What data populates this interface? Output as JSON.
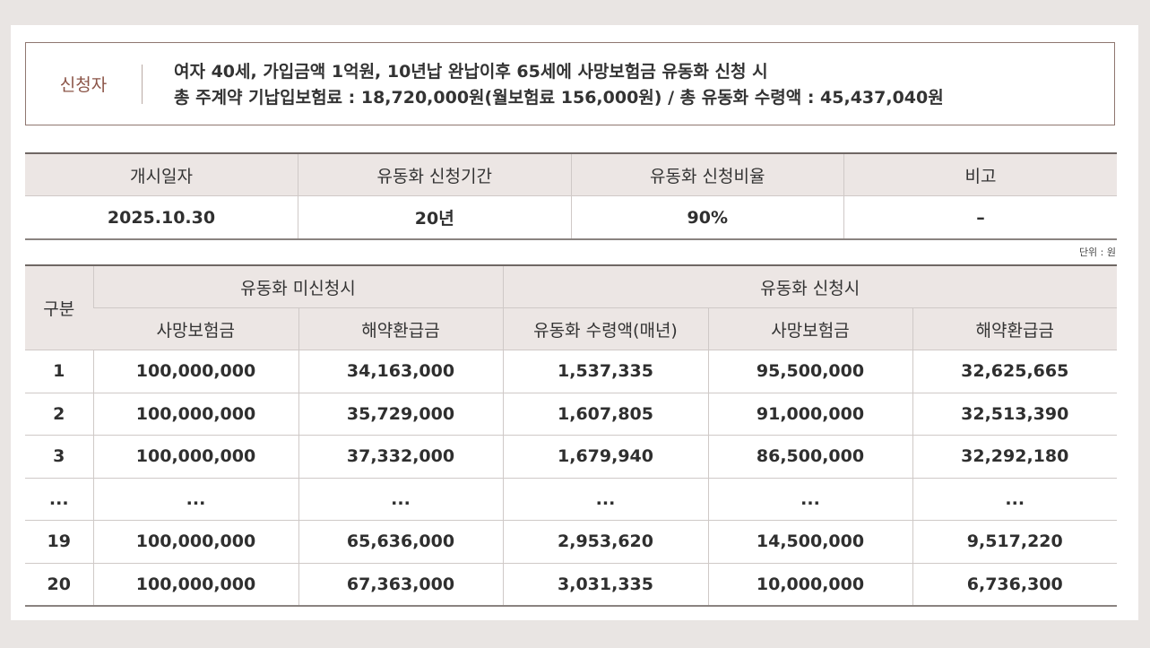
{
  "applicant": {
    "label": "신청자",
    "lines": [
      "여자 40세, 가입금액 1억원, 10년납 완납이후 65세에 사망보험금 유동화 신청 시",
      "총 주계약 기납입보험료 : 18,720,000원(월보험료 156,000원) / 총 유동화 수령액 : 45,437,040원"
    ]
  },
  "summary_table": {
    "headers": [
      "개시일자",
      "유동화 신청기간",
      "유동화 신청비율",
      "비고"
    ],
    "row": [
      "2025.10.30",
      "20년",
      "90%",
      "–"
    ]
  },
  "unit": "단위 : 원",
  "detail_table": {
    "category": "구분",
    "groups": [
      "유동화 미신청시",
      "유동화 신청시"
    ],
    "subheaders": [
      "사망보험금",
      "해약환급금",
      "유동화 수령액(매년)",
      "사망보험금",
      "해약환급금"
    ],
    "rows": [
      [
        "1",
        "100,000,000",
        "34,163,000",
        "1,537,335",
        "95,500,000",
        "32,625,665"
      ],
      [
        "2",
        "100,000,000",
        "35,729,000",
        "1,607,805",
        "91,000,000",
        "32,513,390"
      ],
      [
        "3",
        "100,000,000",
        "37,332,000",
        "1,679,940",
        "86,500,000",
        "32,292,180"
      ],
      [
        "...",
        "...",
        "...",
        "...",
        "...",
        "..."
      ],
      [
        "19",
        "100,000,000",
        "65,636,000",
        "2,953,620",
        "14,500,000",
        "9,517,220"
      ],
      [
        "20",
        "100,000,000",
        "67,363,000",
        "3,031,335",
        "10,000,000",
        "6,736,300"
      ]
    ]
  }
}
